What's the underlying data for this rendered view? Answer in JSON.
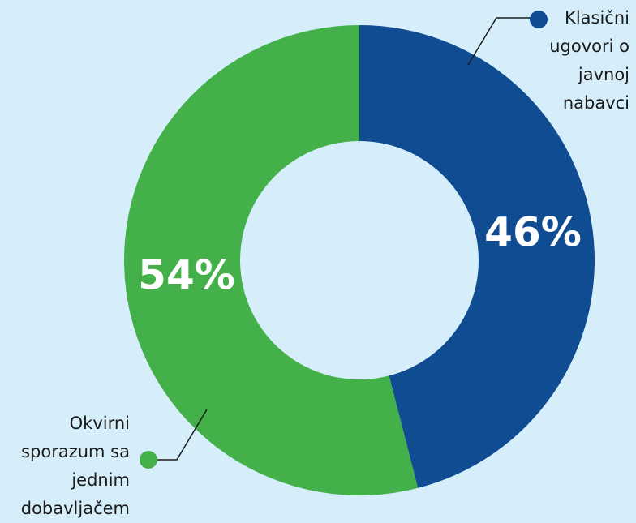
{
  "chart_data": {
    "type": "pie",
    "donut": true,
    "categories": [
      "Klasični ugovori o javnoj nabavci",
      "Okvirni sporazum sa jednim dobavljačem"
    ],
    "values": [
      46,
      54
    ],
    "value_labels": [
      "46%",
      "54%"
    ],
    "colors": [
      "#0f4c92",
      "#43b04a"
    ]
  }
}
